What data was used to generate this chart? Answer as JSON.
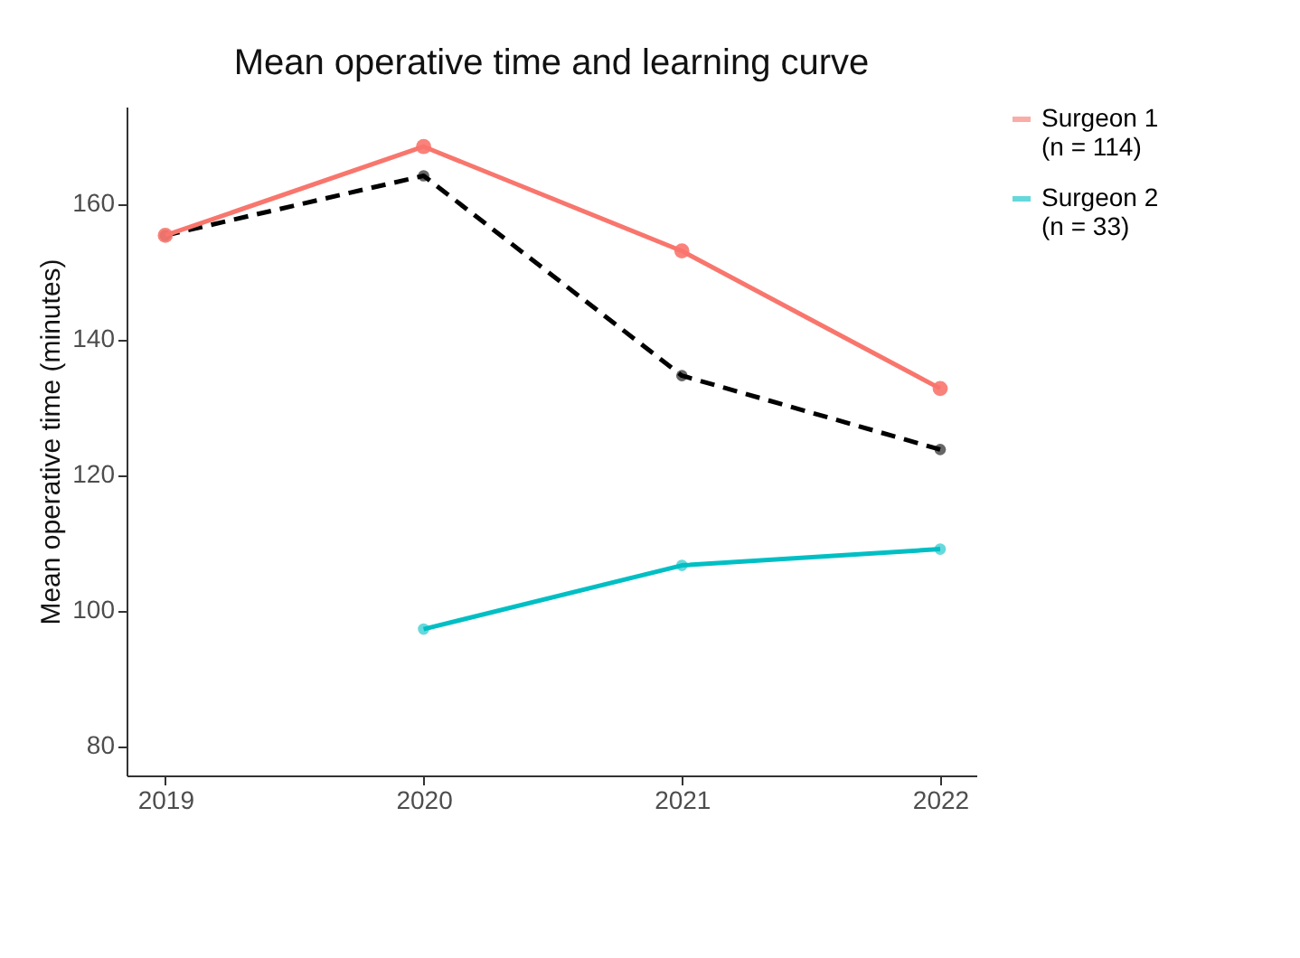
{
  "chart_data": {
    "type": "line",
    "title": "Mean operative time and learning curve",
    "ylabel": "Mean operative time (minutes)",
    "x": [
      2019,
      2020,
      2021,
      2022
    ],
    "series": [
      {
        "name": "Surgeon 1\n(n = 114)",
        "color": "#f8766d",
        "values": [
          155.3,
          168.4,
          153,
          132.7
        ],
        "line_style": "solid"
      },
      {
        "name": "Surgeon 2\n(n = 33)",
        "color": "#00bfc4",
        "values": [
          null,
          97.2,
          106.6,
          109
        ],
        "line_style": "solid"
      },
      {
        "color": "#000000",
        "values": [
          155.3,
          164.1,
          134.6,
          123.7
        ],
        "line_style": "dashed"
      }
    ],
    "xlim": [
      2018.85,
      2022.14
    ],
    "xticks": [
      2019,
      2020,
      2021,
      2022
    ],
    "ylim": [
      75.6,
      174.3
    ],
    "yticks": [
      80,
      100,
      120,
      140,
      160
    ],
    "grid": false,
    "legend": "right",
    "marker": "circle"
  }
}
